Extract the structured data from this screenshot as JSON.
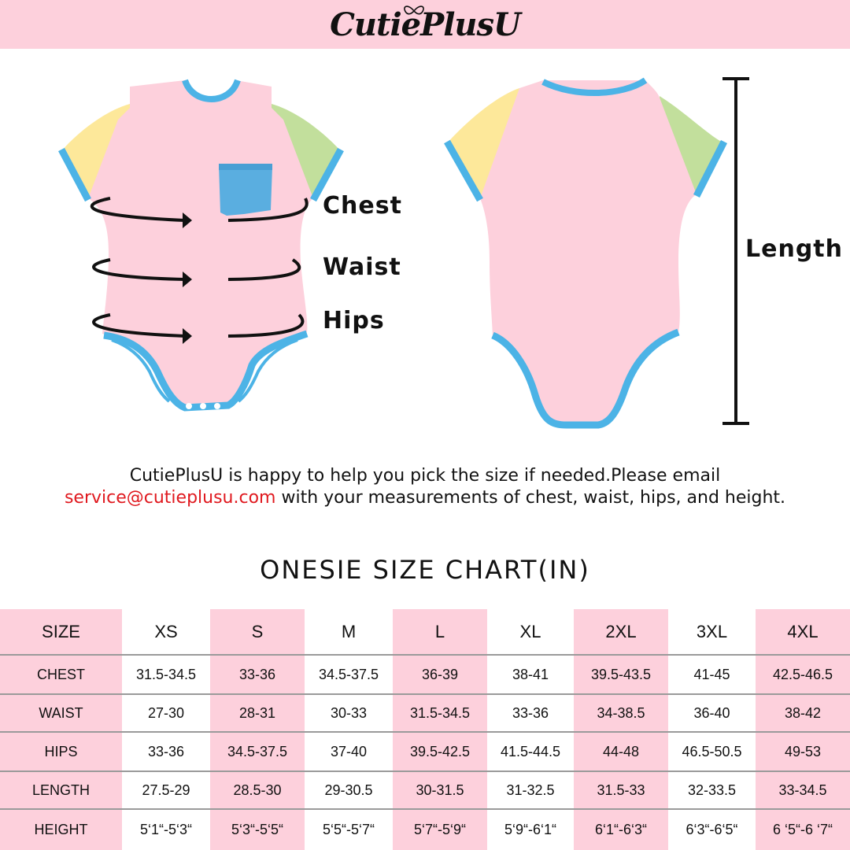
{
  "brand": {
    "name": "CutiePlusU"
  },
  "figure": {
    "labels": {
      "chest": "Chest",
      "waist": "Waist",
      "hips": "Hips",
      "length": "Length"
    },
    "colors": {
      "body": "#fdd0dc",
      "trim": "#4cb3e6",
      "left_sleeve": "#fde89a",
      "right_sleeve": "#c2df9c",
      "pocket": "#5aaee0"
    }
  },
  "note": {
    "line1": "CutiePlusU is happy to help you pick the size if needed.Please email",
    "email": "service@cutieplusu.com",
    "line2_rest": " with your measurements of chest, waist, hips, and height."
  },
  "chart_title": "ONESIE  SIZE  CHART(IN)",
  "size_table": {
    "header": [
      "SIZE",
      "XS",
      "S",
      "M",
      "L",
      "XL",
      "2XL",
      "3XL",
      "4XL"
    ],
    "rows": [
      [
        "CHEST",
        "31.5-34.5",
        "33-36",
        "34.5-37.5",
        "36-39",
        "38-41",
        "39.5-43.5",
        "41-45",
        "42.5-46.5"
      ],
      [
        "WAIST",
        "27-30",
        "28-31",
        "30-33",
        "31.5-34.5",
        "33-36",
        "34-38.5",
        "36-40",
        "38-42"
      ],
      [
        "HIPS",
        "33-36",
        "34.5-37.5",
        "37-40",
        "39.5-42.5",
        "41.5-44.5",
        "44-48",
        "46.5-50.5",
        "49-53"
      ],
      [
        "LENGTH",
        "27.5-29",
        "28.5-30",
        "29-30.5",
        "30-31.5",
        "31-32.5",
        "31.5-33",
        "32-33.5",
        "33-34.5"
      ],
      [
        "HEIGHT",
        "5‘1“-5‘3“",
        "5‘3“-5‘5“",
        "5‘5“-5‘7“",
        "5‘7“-5‘9“",
        "5‘9“-6‘1“",
        "6‘1“-6‘3“",
        "6‘3“-6‘5“",
        "6 ‘5“-6 ‘7“"
      ]
    ],
    "colors": {
      "pink": "#fdd0dc",
      "white": "#ffffff",
      "divider": "#9a9a9a"
    }
  }
}
